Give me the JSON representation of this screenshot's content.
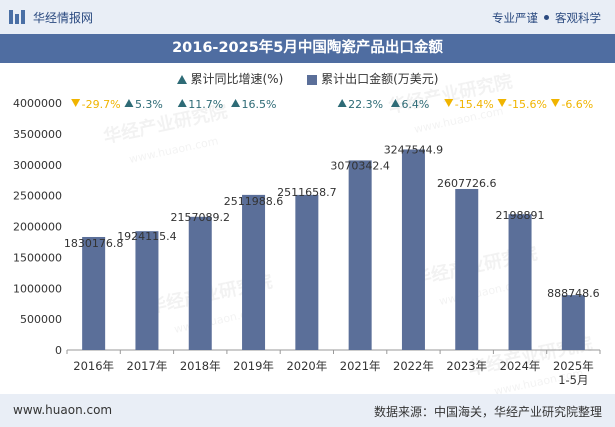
{
  "header": {
    "site_name": "华经情报网",
    "tagline_left": "专业严谨",
    "tagline_right": "客观科学",
    "title": "2016-2025年5月中国陶瓷产品出口金额"
  },
  "legend": {
    "growth_label": "累计同比增速(%)",
    "amount_label": "累计出口金额(万美元)"
  },
  "watermark": {
    "text": "华经产业研究院",
    "url": "www.huaon.com"
  },
  "footer": {
    "url": "www.huaon.com",
    "source": "数据来源：中国海关，华经产业研究院整理"
  },
  "colors": {
    "bar": "#5b6f99",
    "up": "#2e6b76",
    "down": "#f0b400",
    "brand": "#4f6da1"
  },
  "chart_data": {
    "type": "bar",
    "title": "2016-2025年5月中国陶瓷产品出口金额",
    "categories": [
      "2016年",
      "2017年",
      "2018年",
      "2019年",
      "2020年",
      "2021年",
      "2022年",
      "2023年",
      "2024年",
      "2025年\n1-5月"
    ],
    "series": [
      {
        "name": "累计出口金额(万美元)",
        "values": [
          1830176.8,
          1924115.4,
          2157089.2,
          2511988.6,
          2511658.7,
          3070342.4,
          3247544.9,
          2607726.6,
          2198891,
          888748.6
        ],
        "labels": [
          "1830176.8",
          "1924115.4",
          "2157089.2",
          "2511988.6",
          "2511658.7",
          "3070342.4",
          "3247544.9",
          "2607726.6",
          "2198891",
          "888748.6"
        ]
      },
      {
        "name": "累计同比增速(%)",
        "values": [
          -29.7,
          5.3,
          11.7,
          16.5,
          null,
          22.3,
          6.4,
          -15.4,
          -15.6,
          -6.6
        ],
        "labels": [
          "-29.7%",
          "5.3%",
          "11.7%",
          "16.5%",
          "",
          "22.3%",
          "6.4%",
          "-15.4%",
          "-15.6%",
          "-6.6%"
        ]
      }
    ],
    "yticks": [
      "0",
      "500000",
      "1000000",
      "1500000",
      "2000000",
      "2500000",
      "3000000",
      "3500000",
      "4000000"
    ],
    "ylim": [
      0,
      4000000
    ],
    "xlabel": "",
    "ylabel": "",
    "legend_position": "top-center",
    "grid": false
  }
}
